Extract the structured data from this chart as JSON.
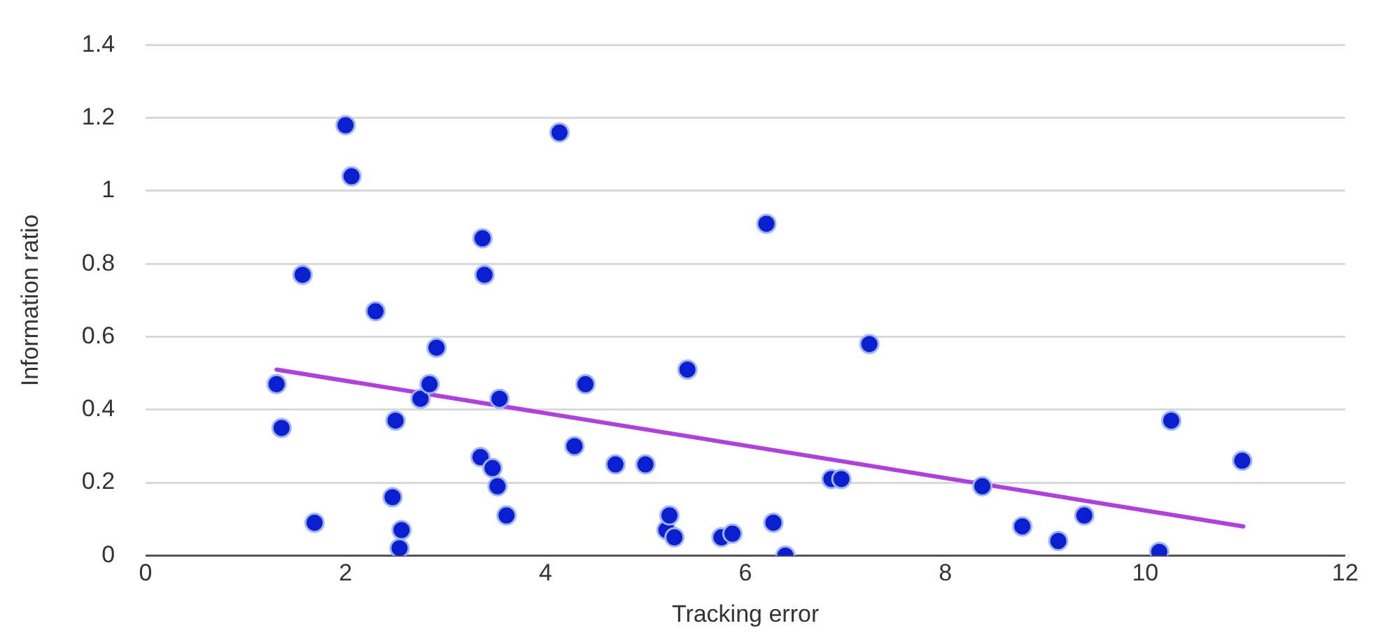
{
  "chart_data": {
    "type": "scatter",
    "xlabel": "Tracking error",
    "ylabel": "Information ratio",
    "xlim": [
      0,
      12
    ],
    "xticks": [
      0,
      2,
      4,
      6,
      8,
      10,
      12
    ],
    "ylim": [
      0,
      1.4
    ],
    "yticks": [
      0,
      {
        "value": 0.2,
        "label": "0.2"
      },
      {
        "value": 0.4,
        "label": "0.4"
      },
      {
        "value": 0.6,
        "label": "0.6"
      },
      {
        "value": 0.8,
        "label": "0.8"
      },
      1,
      {
        "value": 1.2,
        "label": "1.2"
      },
      {
        "value": 1.4,
        "label": "1.4"
      }
    ],
    "grid": "y",
    "legend": false,
    "series": [
      {
        "marker": "circle",
        "color": "#0a1fd0",
        "x": [
          1.31,
          1.36,
          1.69,
          1.57,
          2.0,
          2.06,
          2.3,
          2.47,
          2.5,
          2.56,
          2.54,
          2.75,
          2.84,
          2.91,
          3.35,
          3.37,
          3.39,
          3.47,
          3.52,
          3.54,
          3.61,
          4.14,
          4.29,
          4.4,
          4.7,
          5.0,
          5.21,
          5.24,
          5.29,
          5.42,
          5.76,
          5.87,
          6.21,
          6.28,
          6.4,
          6.86,
          6.96,
          7.24,
          8.37,
          8.77,
          9.13,
          9.39,
          10.14,
          10.26,
          10.97
        ],
        "values": [
          0.47,
          0.35,
          0.09,
          0.77,
          1.18,
          1.04,
          0.67,
          0.16,
          0.37,
          0.07,
          0.02,
          0.43,
          0.47,
          0.57,
          0.27,
          0.87,
          0.77,
          0.24,
          0.19,
          0.43,
          0.11,
          1.16,
          0.3,
          0.47,
          0.25,
          0.25,
          0.07,
          0.11,
          0.05,
          0.51,
          0.05,
          0.06,
          0.91,
          0.09,
          0.0,
          0.21,
          0.21,
          0.58,
          0.19,
          0.08,
          0.04,
          0.11,
          0.01,
          0.37,
          0.26
        ]
      },
      {
        "type": "line",
        "marker": "none",
        "color": "#b03ee0",
        "x": [
          1.31,
          10.98
        ],
        "values": [
          0.51,
          0.08
        ]
      }
    ]
  }
}
